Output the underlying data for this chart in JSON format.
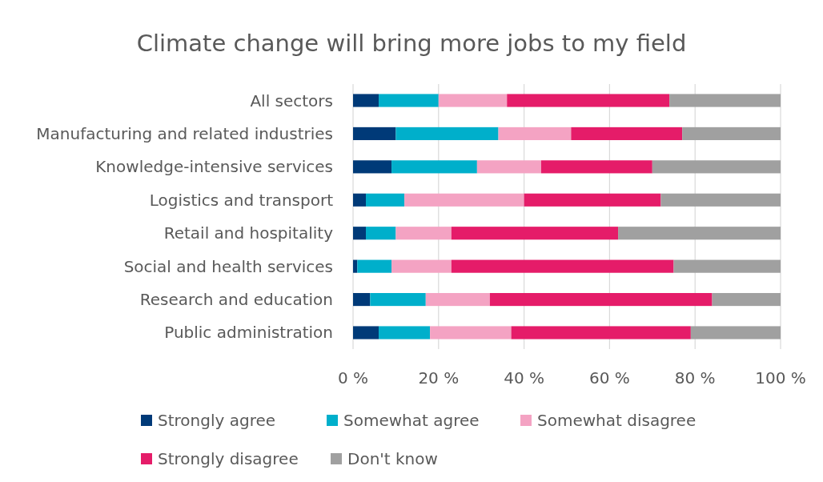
{
  "chart_data": {
    "type": "bar",
    "orientation": "horizontal",
    "stacked": true,
    "title": "Climate change will bring more jobs to my field",
    "categories": [
      "All sectors",
      "Manufacturing and related industries",
      "Knowledge-intensive services",
      "Logistics and transport",
      "Retail and hospitality",
      "Social and health services",
      "Research and education",
      "Public administration"
    ],
    "series": [
      {
        "name": "Strongly agree",
        "color": "#003a78",
        "values": [
          6,
          10,
          9,
          3,
          3,
          1,
          4,
          6
        ]
      },
      {
        "name": "Somewhat agree",
        "color": "#00afcb",
        "values": [
          14,
          24,
          20,
          9,
          7,
          8,
          13,
          12
        ]
      },
      {
        "name": "Somewhat disagree",
        "color": "#f4a3c3",
        "values": [
          16,
          17,
          15,
          28,
          13,
          14,
          15,
          19
        ]
      },
      {
        "name": "Strongly disagree",
        "color": "#e51c69",
        "values": [
          38,
          26,
          26,
          32,
          39,
          52,
          52,
          42
        ]
      },
      {
        "name": "Don't know",
        "color": "#a0a0a0",
        "values": [
          26,
          23,
          30,
          28,
          38,
          25,
          16,
          21
        ]
      }
    ],
    "xlim": [
      0,
      100
    ],
    "xticks": [
      {
        "value": 0,
        "label": "0 %"
      },
      {
        "value": 20,
        "label": "20 %"
      },
      {
        "value": 40,
        "label": "40 %"
      },
      {
        "value": 60,
        "label": "60 %"
      },
      {
        "value": 80,
        "label": "80 %"
      },
      {
        "value": 100,
        "label": "100 %"
      }
    ],
    "grid": "x",
    "legend": "bottom"
  }
}
